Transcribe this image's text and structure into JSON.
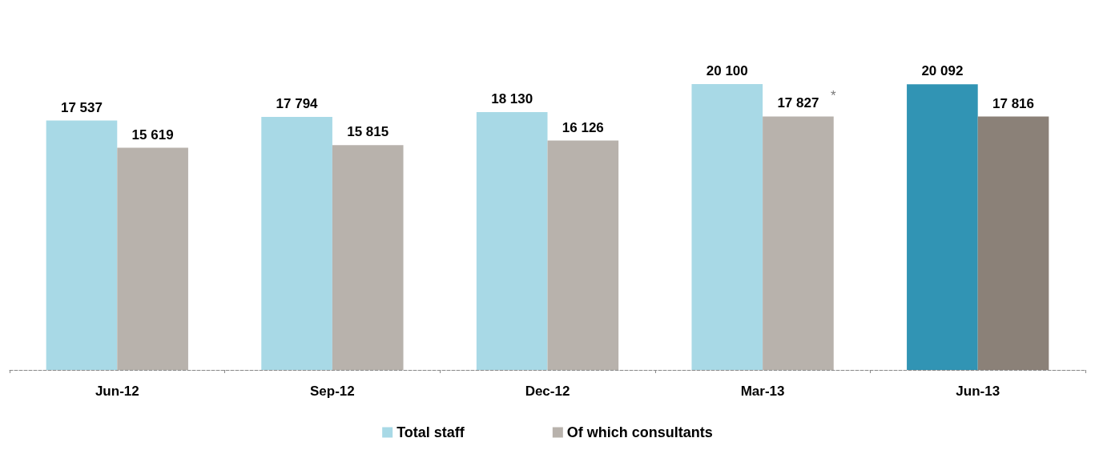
{
  "chart_data": {
    "type": "bar",
    "categories": [
      "Jun-12",
      "Sep-12",
      "Dec-12",
      "Mar-13",
      "Jun-13"
    ],
    "series": [
      {
        "name": "Total staff",
        "color": "#a8d9e6",
        "colors": [
          "#a8d9e6",
          "#a8d9e6",
          "#a8d9e6",
          "#a8d9e6",
          "#3194b4"
        ],
        "values": [
          17537,
          17794,
          18130,
          20100,
          20092
        ],
        "value_labels": [
          "17 537",
          "17 794",
          "18 130",
          "20 100",
          "20 092"
        ]
      },
      {
        "name": "Of which consultants",
        "color": "#b8b2ac",
        "colors": [
          "#b8b2ac",
          "#b8b2ac",
          "#b8b2ac",
          "#b8b2ac",
          "#8b8178"
        ],
        "values": [
          15619,
          15815,
          16126,
          17827,
          17816
        ],
        "value_labels": [
          "15 619",
          "15 815",
          "16 126",
          "17 827",
          "17 816"
        ]
      }
    ],
    "annotations": [
      "*"
    ],
    "legend": "bottom",
    "grid": false
  }
}
